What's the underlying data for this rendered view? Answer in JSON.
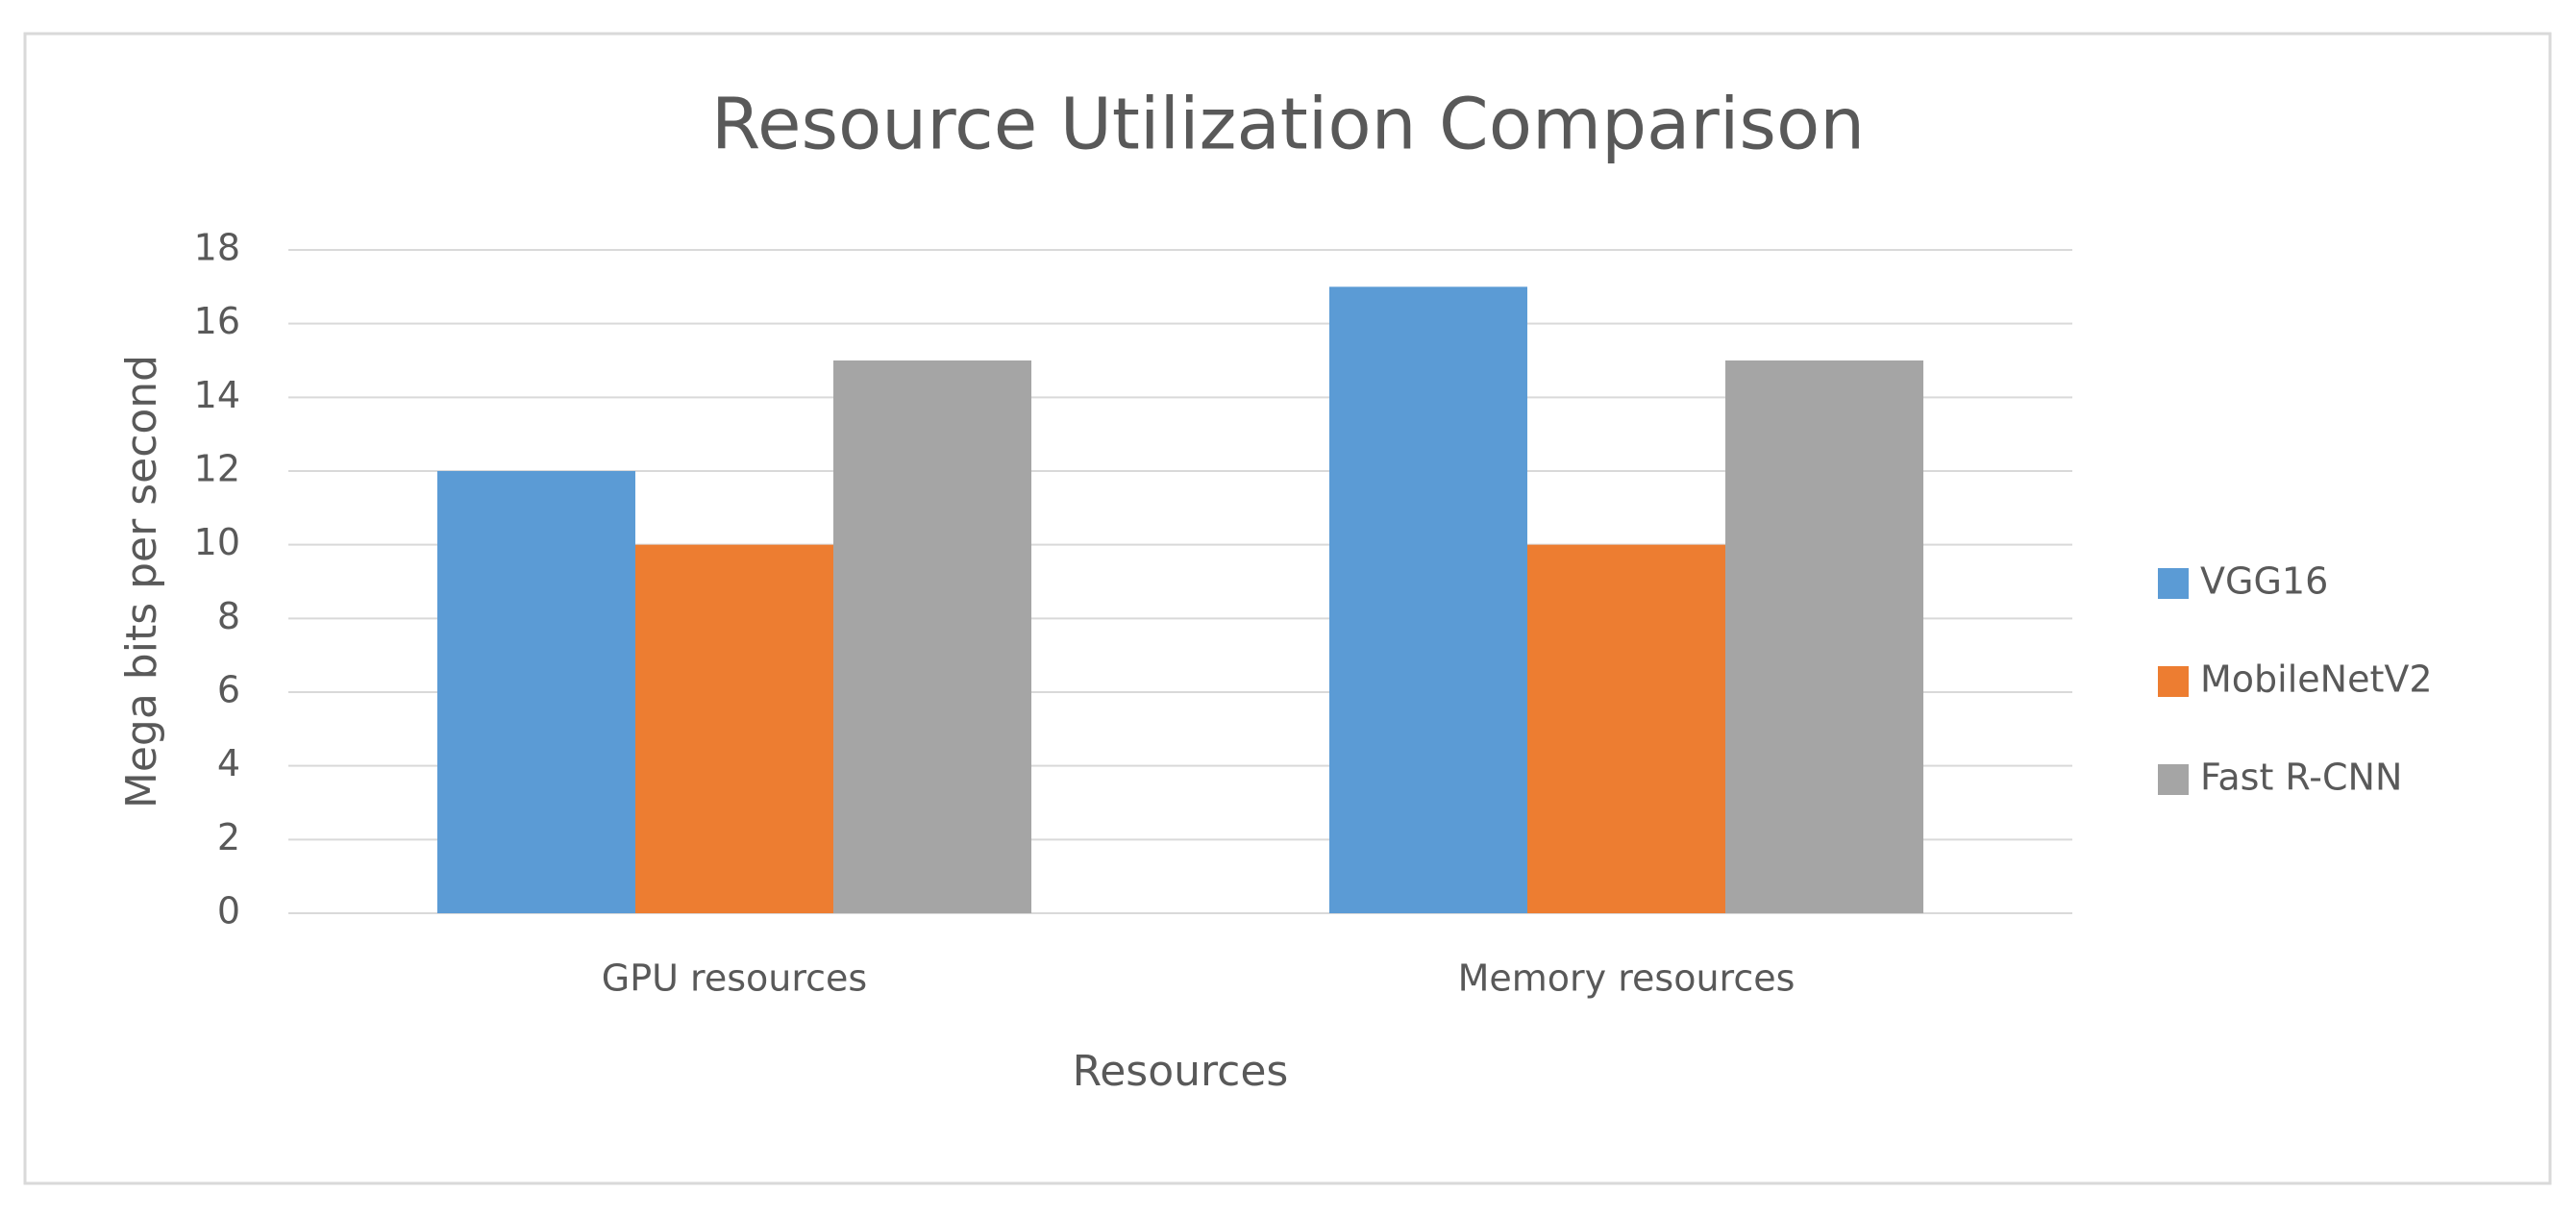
{
  "chart_data": {
    "type": "bar",
    "title": "Resource Utilization Comparison",
    "x_label": "Resources",
    "y_label": "Mega bits per second",
    "categories": [
      "GPU resources",
      "Memory resources"
    ],
    "series": [
      {
        "name": "VGG16",
        "color": "#5b9bd5",
        "values": [
          12,
          17
        ]
      },
      {
        "name": "MobileNetV2",
        "color": "#ed7d31",
        "values": [
          10,
          10
        ]
      },
      {
        "name": "Fast R-CNN",
        "color": "#a5a5a5",
        "values": [
          15,
          15
        ]
      }
    ],
    "ylim": [
      0,
      18
    ],
    "yticks": [
      0,
      2,
      4,
      6,
      8,
      10,
      12,
      14,
      16,
      18
    ],
    "grid": true,
    "legend": "right"
  }
}
